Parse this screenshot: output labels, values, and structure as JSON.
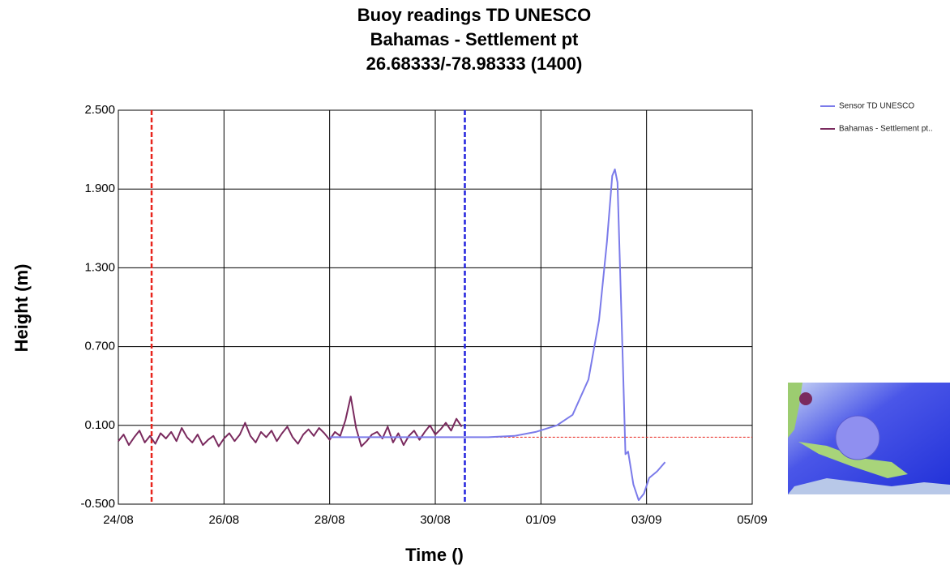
{
  "chart_data": {
    "type": "line",
    "title_lines": [
      "Buoy readings TD UNESCO",
      "Bahamas - Settlement pt",
      "26.68333/-78.98333 (1400)"
    ],
    "x_label": "Time ()",
    "y_label": "Height (m)",
    "xlim": [
      0,
      12
    ],
    "xticks": [
      {
        "value": 0,
        "label": "24/08"
      },
      {
        "value": 2,
        "label": "26/08"
      },
      {
        "value": 4,
        "label": "28/08"
      },
      {
        "value": 6,
        "label": "30/08"
      },
      {
        "value": 8,
        "label": "01/09"
      },
      {
        "value": 10,
        "label": "03/09"
      },
      {
        "value": 12,
        "label": "05/09"
      }
    ],
    "ylim": [
      -0.5,
      2.5
    ],
    "yticks": [
      {
        "value": -0.5,
        "label": "-0.500"
      },
      {
        "value": 0.1,
        "label": "0.100"
      },
      {
        "value": 0.7,
        "label": "0.700"
      },
      {
        "value": 1.3,
        "label": "1.300"
      },
      {
        "value": 1.9,
        "label": "1.900"
      },
      {
        "value": 2.5,
        "label": "2.500"
      }
    ],
    "grid": true,
    "series": [
      {
        "name": "Sensor TD UNESCO",
        "color": "#7b7bea",
        "x": [
          4.0,
          5,
          6,
          7,
          7.5,
          7.9,
          8.3,
          8.6,
          8.9,
          9.1,
          9.25,
          9.35,
          9.4,
          9.45,
          9.55,
          9.6,
          9.65,
          9.75,
          9.85,
          9.95,
          10.05,
          10.2,
          10.35
        ],
        "values": [
          0.01,
          0.01,
          0.01,
          0.01,
          0.02,
          0.05,
          0.1,
          0.18,
          0.45,
          0.9,
          1.5,
          2.0,
          2.05,
          1.95,
          0.6,
          -0.12,
          -0.1,
          -0.35,
          -0.47,
          -0.42,
          -0.3,
          -0.25,
          -0.18
        ]
      },
      {
        "name": "Bahamas - Settlement pt..",
        "color": "#7a2a5e",
        "x": [
          0.0,
          0.1,
          0.2,
          0.3,
          0.4,
          0.5,
          0.6,
          0.7,
          0.8,
          0.9,
          1.0,
          1.1,
          1.2,
          1.3,
          1.4,
          1.5,
          1.6,
          1.7,
          1.8,
          1.9,
          2.0,
          2.1,
          2.2,
          2.3,
          2.4,
          2.5,
          2.6,
          2.7,
          2.8,
          2.9,
          3.0,
          3.1,
          3.2,
          3.3,
          3.4,
          3.5,
          3.6,
          3.7,
          3.8,
          3.9,
          4.0,
          4.1,
          4.2,
          4.3,
          4.4,
          4.5,
          4.6,
          4.7,
          4.8,
          4.9,
          5.0,
          5.1,
          5.2,
          5.3,
          5.4,
          5.5,
          5.6,
          5.7,
          5.8,
          5.9,
          6.0,
          6.1,
          6.2,
          6.3,
          6.4,
          6.5
        ],
        "values": [
          -0.02,
          0.03,
          -0.05,
          0.01,
          0.06,
          -0.03,
          0.02,
          -0.04,
          0.04,
          0.0,
          0.05,
          -0.02,
          0.08,
          0.01,
          -0.03,
          0.03,
          -0.05,
          -0.01,
          0.02,
          -0.06,
          0.0,
          0.04,
          -0.02,
          0.03,
          0.12,
          0.02,
          -0.03,
          0.05,
          0.01,
          0.06,
          -0.02,
          0.04,
          0.09,
          0.01,
          -0.04,
          0.03,
          0.07,
          0.02,
          0.08,
          0.04,
          -0.01,
          0.05,
          0.02,
          0.14,
          0.32,
          0.08,
          -0.06,
          -0.02,
          0.03,
          0.05,
          0.0,
          0.09,
          -0.03,
          0.04,
          -0.05,
          0.02,
          0.06,
          -0.01,
          0.05,
          0.1,
          0.03,
          0.07,
          0.12,
          0.06,
          0.15,
          0.09
        ]
      }
    ],
    "vlines": [
      {
        "x": 0.63,
        "color": "#e8241c"
      },
      {
        "x": 6.56,
        "color": "#2222dd"
      }
    ],
    "hline": {
      "y": 0.01,
      "from": 6.84,
      "color": "#e8241c"
    }
  }
}
